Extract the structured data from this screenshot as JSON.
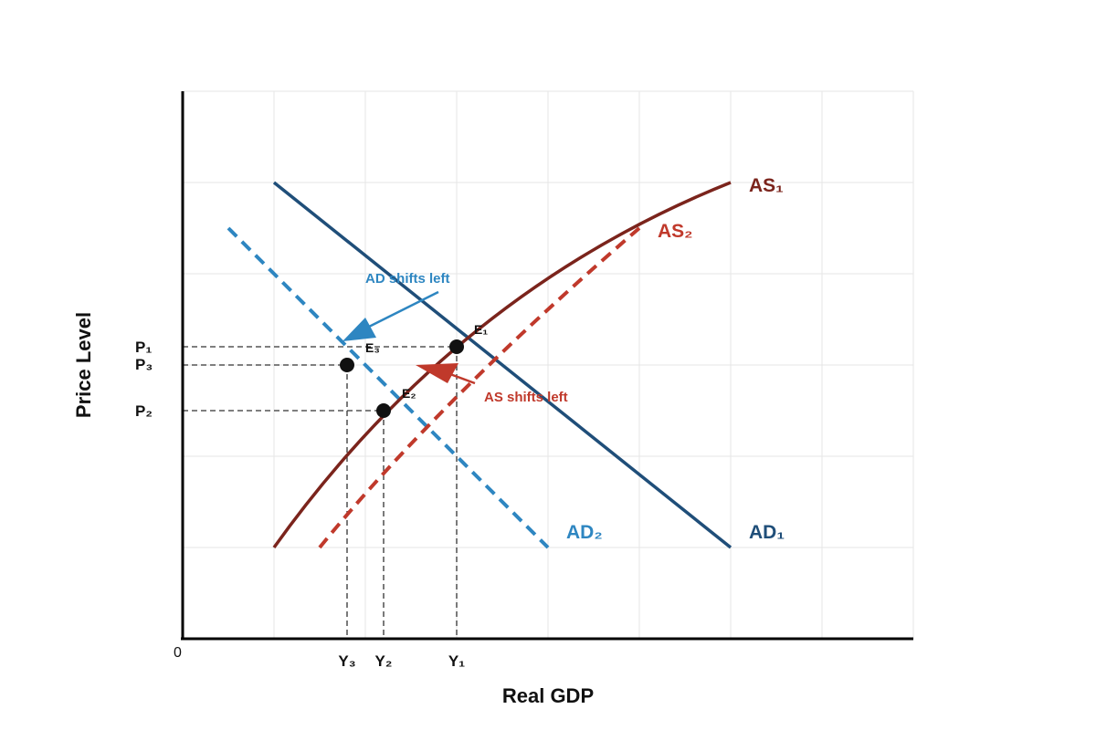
{
  "colors": {
    "ad1": "#1f4e79",
    "ad2": "#2e86c1",
    "as1": "#7b241c",
    "as2": "#c0392b",
    "guide": "#333333",
    "point": "#111111"
  },
  "axes": {
    "x_title": "Real GDP",
    "y_title": "Price Level",
    "origin": "0"
  },
  "curves": {
    "ad1": {
      "label": "AD₁"
    },
    "ad2": {
      "label": "AD₂"
    },
    "as1": {
      "label": "AS₁"
    },
    "as2": {
      "label": "AS₂"
    }
  },
  "price_ticks": {
    "p1": "P₁",
    "p3": "P₃",
    "p2": "P₂"
  },
  "output_ticks": {
    "y3": "Y₃",
    "y2": "Y₂",
    "y1": "Y₁"
  },
  "points": {
    "e1": {
      "label": "E₁"
    },
    "e2": {
      "label": "E₂"
    },
    "e3": {
      "label": "E₃"
    }
  },
  "annotations": {
    "ad_shift": "AD shifts left",
    "as_shift": "AS shifts left"
  }
}
